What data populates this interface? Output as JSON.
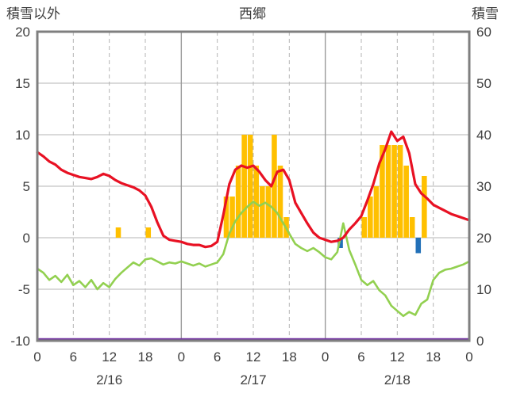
{
  "header": {
    "left_axis_label": "積雪以外",
    "title": "西郷",
    "right_axis_label": "積雪"
  },
  "chart_data": {
    "type": "combo",
    "title": "西郷",
    "left_axis": {
      "label": "積雪以外",
      "min": -10,
      "max": 20,
      "ticks": [
        20,
        15,
        10,
        5,
        0,
        -5,
        -10
      ]
    },
    "right_axis": {
      "label": "積雪",
      "min": 0,
      "max": 60,
      "ticks": [
        60,
        50,
        40,
        30,
        20,
        10,
        0
      ]
    },
    "x_axis": {
      "hours_range": [
        0,
        72
      ],
      "ticks": [
        {
          "hour": 0,
          "label": "0"
        },
        {
          "hour": 6,
          "label": "6"
        },
        {
          "hour": 12,
          "label": "12"
        },
        {
          "hour": 18,
          "label": "18"
        },
        {
          "hour": 24,
          "label": "0"
        },
        {
          "hour": 30,
          "label": "6"
        },
        {
          "hour": 36,
          "label": "12"
        },
        {
          "hour": 42,
          "label": "18"
        },
        {
          "hour": 48,
          "label": "0"
        },
        {
          "hour": 54,
          "label": "6"
        },
        {
          "hour": 60,
          "label": "12"
        },
        {
          "hour": 66,
          "label": "18"
        },
        {
          "hour": 72,
          "label": "0"
        }
      ],
      "day_labels": [
        {
          "hour": 12,
          "label": "2/16"
        },
        {
          "hour": 36,
          "label": "2/17"
        },
        {
          "hour": 60,
          "label": "2/18"
        }
      ]
    },
    "grid": {
      "h_color": "#b5b5b5",
      "v_dash_color": "#b5b5b5",
      "v_day_color": "#9a9a9a",
      "border_color": "#7f7f7f"
    },
    "series": {
      "red_line": {
        "color": "#e81123",
        "points": [
          [
            0,
            8.3
          ],
          [
            1,
            7.9
          ],
          [
            2,
            7.4
          ],
          [
            3,
            7.1
          ],
          [
            4,
            6.6
          ],
          [
            5,
            6.3
          ],
          [
            6,
            6.1
          ],
          [
            7,
            5.9
          ],
          [
            8,
            5.8
          ],
          [
            9,
            5.7
          ],
          [
            10,
            5.9
          ],
          [
            11,
            6.2
          ],
          [
            12,
            6.0
          ],
          [
            13,
            5.6
          ],
          [
            14,
            5.3
          ],
          [
            15,
            5.1
          ],
          [
            16,
            4.9
          ],
          [
            17,
            4.6
          ],
          [
            18,
            4.1
          ],
          [
            19,
            3.0
          ],
          [
            20,
            1.5
          ],
          [
            21,
            0.2
          ],
          [
            22,
            -0.2
          ],
          [
            23,
            -0.3
          ],
          [
            24,
            -0.4
          ],
          [
            25,
            -0.6
          ],
          [
            26,
            -0.7
          ],
          [
            27,
            -0.7
          ],
          [
            28,
            -0.9
          ],
          [
            29,
            -0.8
          ],
          [
            30,
            -0.4
          ],
          [
            31,
            2.2
          ],
          [
            32,
            5.2
          ],
          [
            33,
            6.6
          ],
          [
            34,
            7.0
          ],
          [
            35,
            6.8
          ],
          [
            36,
            7.0
          ],
          [
            37,
            6.4
          ],
          [
            38,
            5.6
          ],
          [
            39,
            5.0
          ],
          [
            40,
            6.4
          ],
          [
            41,
            6.6
          ],
          [
            42,
            5.6
          ],
          [
            43,
            3.4
          ],
          [
            44,
            2.4
          ],
          [
            45,
            1.4
          ],
          [
            46,
            0.5
          ],
          [
            47,
            0.0
          ],
          [
            48,
            -0.2
          ],
          [
            49,
            -0.4
          ],
          [
            50,
            -0.3
          ],
          [
            51,
            0.0
          ],
          [
            52,
            0.8
          ],
          [
            53,
            1.4
          ],
          [
            54,
            2.1
          ],
          [
            55,
            3.6
          ],
          [
            56,
            5.2
          ],
          [
            57,
            7.2
          ],
          [
            58,
            8.6
          ],
          [
            59,
            10.3
          ],
          [
            60,
            9.4
          ],
          [
            61,
            9.8
          ],
          [
            62,
            8.2
          ],
          [
            63,
            5.2
          ],
          [
            64,
            4.3
          ],
          [
            65,
            3.8
          ],
          [
            66,
            3.2
          ],
          [
            67,
            2.9
          ],
          [
            68,
            2.6
          ],
          [
            69,
            2.3
          ],
          [
            70,
            2.1
          ],
          [
            71,
            1.9
          ],
          [
            72,
            1.7
          ]
        ]
      },
      "green_line": {
        "color": "#92d050",
        "points": [
          [
            0,
            -3.0
          ],
          [
            1,
            -3.4
          ],
          [
            2,
            -4.1
          ],
          [
            3,
            -3.7
          ],
          [
            4,
            -4.3
          ],
          [
            5,
            -3.6
          ],
          [
            6,
            -4.6
          ],
          [
            7,
            -4.2
          ],
          [
            8,
            -4.8
          ],
          [
            9,
            -4.1
          ],
          [
            10,
            -5.0
          ],
          [
            11,
            -4.4
          ],
          [
            12,
            -4.8
          ],
          [
            13,
            -4.0
          ],
          [
            14,
            -3.4
          ],
          [
            15,
            -2.9
          ],
          [
            16,
            -2.4
          ],
          [
            17,
            -2.7
          ],
          [
            18,
            -2.1
          ],
          [
            19,
            -2.0
          ],
          [
            20,
            -2.3
          ],
          [
            21,
            -2.6
          ],
          [
            22,
            -2.4
          ],
          [
            23,
            -2.5
          ],
          [
            24,
            -2.3
          ],
          [
            25,
            -2.5
          ],
          [
            26,
            -2.7
          ],
          [
            27,
            -2.5
          ],
          [
            28,
            -2.8
          ],
          [
            29,
            -2.6
          ],
          [
            30,
            -2.4
          ],
          [
            31,
            -1.6
          ],
          [
            32,
            0.4
          ],
          [
            33,
            1.6
          ],
          [
            34,
            2.4
          ],
          [
            35,
            3.0
          ],
          [
            36,
            3.5
          ],
          [
            37,
            3.1
          ],
          [
            38,
            3.4
          ],
          [
            39,
            3.0
          ],
          [
            40,
            2.4
          ],
          [
            41,
            1.4
          ],
          [
            42,
            0.4
          ],
          [
            43,
            -0.6
          ],
          [
            44,
            -1.0
          ],
          [
            45,
            -1.3
          ],
          [
            46,
            -1.0
          ],
          [
            47,
            -1.4
          ],
          [
            48,
            -1.9
          ],
          [
            49,
            -2.1
          ],
          [
            50,
            -1.4
          ],
          [
            51,
            1.4
          ],
          [
            52,
            -1.2
          ],
          [
            53,
            -2.6
          ],
          [
            54,
            -4.1
          ],
          [
            55,
            -4.6
          ],
          [
            56,
            -4.2
          ],
          [
            57,
            -5.1
          ],
          [
            58,
            -5.6
          ],
          [
            59,
            -6.6
          ],
          [
            60,
            -7.1
          ],
          [
            61,
            -7.6
          ],
          [
            62,
            -7.2
          ],
          [
            63,
            -7.5
          ],
          [
            64,
            -6.4
          ],
          [
            65,
            -6.0
          ],
          [
            66,
            -4.1
          ],
          [
            67,
            -3.4
          ],
          [
            68,
            -3.1
          ],
          [
            69,
            -3.0
          ],
          [
            70,
            -2.8
          ],
          [
            71,
            -2.6
          ],
          [
            72,
            -2.3
          ]
        ]
      },
      "orange_bars": {
        "color": "#ffc000",
        "bars": [
          [
            13,
            1
          ],
          [
            18,
            1
          ],
          [
            31,
            4
          ],
          [
            32,
            4
          ],
          [
            33,
            7
          ],
          [
            34,
            10
          ],
          [
            35,
            10
          ],
          [
            36,
            7
          ],
          [
            37,
            5
          ],
          [
            38,
            5
          ],
          [
            39,
            10
          ],
          [
            40,
            7
          ],
          [
            41,
            2
          ],
          [
            54,
            2
          ],
          [
            55,
            4
          ],
          [
            56,
            5
          ],
          [
            57,
            9
          ],
          [
            58,
            9
          ],
          [
            59,
            9
          ],
          [
            60,
            9
          ],
          [
            61,
            7
          ],
          [
            62,
            2
          ],
          [
            64,
            6
          ]
        ]
      },
      "blue_bars": {
        "color": "#2270b8",
        "bars": [
          [
            50,
            -1
          ],
          [
            63,
            -1.5
          ]
        ]
      },
      "purple_line": {
        "color": "#7030a0",
        "right_axis_value": 0
      }
    }
  }
}
